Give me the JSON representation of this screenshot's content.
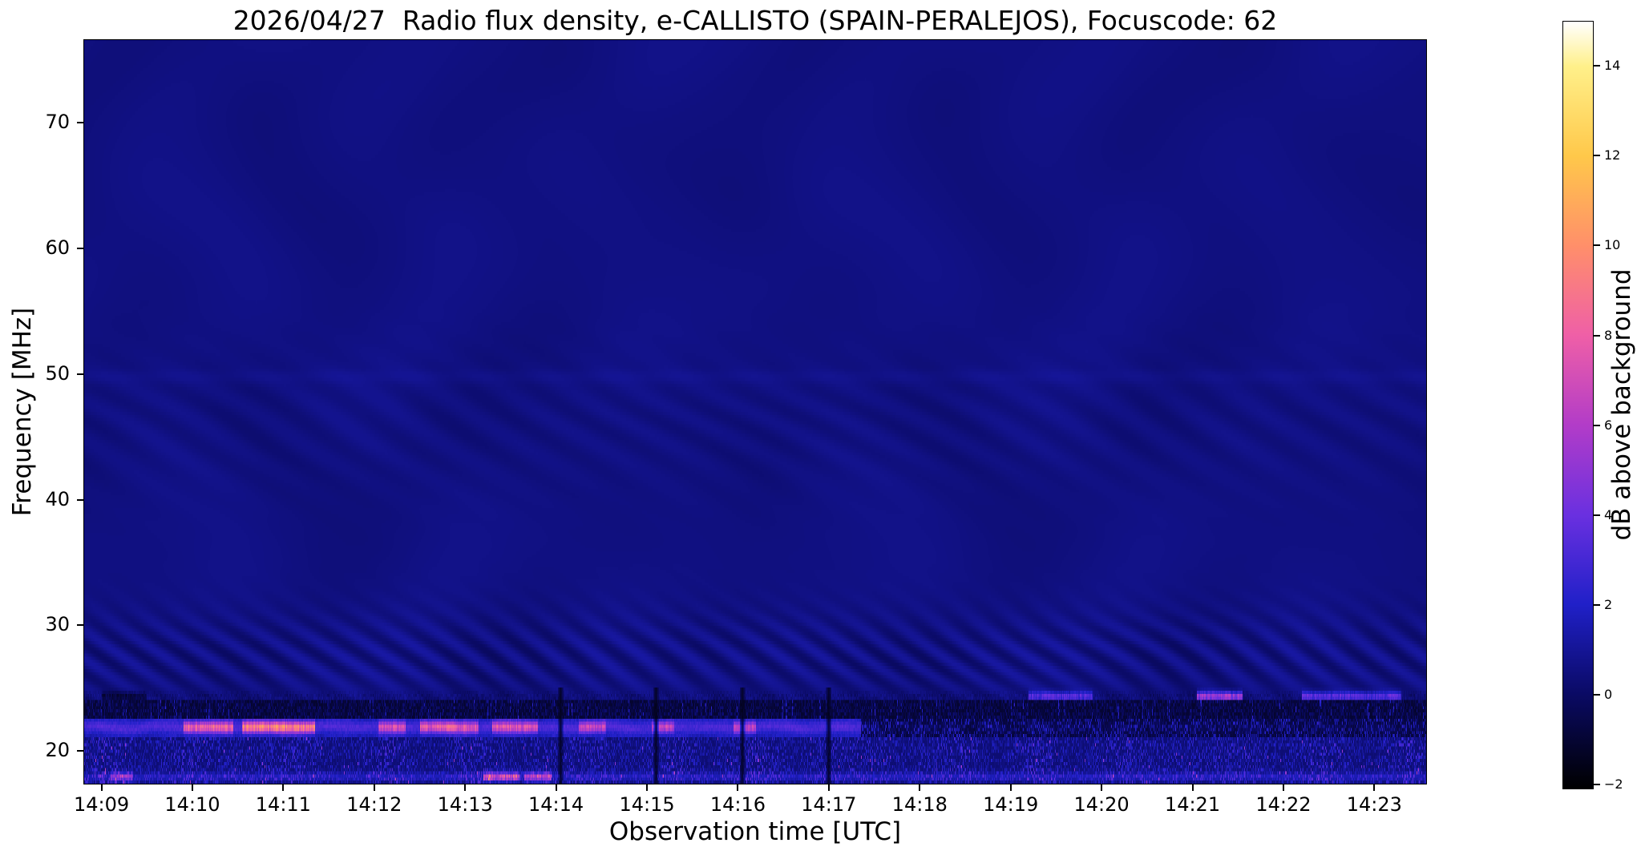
{
  "chart_data": {
    "type": "heatmap",
    "chart_kind": "radio dynamic spectrum (spectrogram)",
    "title": "2026/04/27  Radio flux density, e-CALLISTO (SPAIN-PERALEJOS), Focuscode: 62",
    "xlabel": "Observation time [UTC]",
    "ylabel": "Frequency [MHz]",
    "x_ticks": [
      {
        "minute": 0,
        "label": "14:09"
      },
      {
        "minute": 1,
        "label": "14:10"
      },
      {
        "minute": 2,
        "label": "14:11"
      },
      {
        "minute": 3,
        "label": "14:12"
      },
      {
        "minute": 4,
        "label": "14:13"
      },
      {
        "minute": 5,
        "label": "14:14"
      },
      {
        "minute": 6,
        "label": "14:15"
      },
      {
        "minute": 7,
        "label": "14:16"
      },
      {
        "minute": 8,
        "label": "14:17"
      },
      {
        "minute": 9,
        "label": "14:18"
      },
      {
        "minute": 10,
        "label": "14:19"
      },
      {
        "minute": 11,
        "label": "14:20"
      },
      {
        "minute": 12,
        "label": "14:21"
      },
      {
        "minute": 13,
        "label": "14:22"
      },
      {
        "minute": 14,
        "label": "14:23"
      }
    ],
    "x_axis_minutes": [
      -0.19,
      14.57
    ],
    "y_ticks": [
      20,
      30,
      40,
      50,
      60,
      70
    ],
    "ylim": [
      17.4,
      76.6
    ],
    "y_axis_direction": "frequency increases upward, low frequencies at bottom",
    "grid": false,
    "background_level_db": 0.5,
    "colorbar": {
      "label": "dB above background",
      "ticks": [
        -2,
        0,
        2,
        4,
        6,
        8,
        10,
        12,
        14
      ],
      "range": [
        -2.1,
        15
      ],
      "colormap_stops": [
        {
          "value": -2.1,
          "color": "#000000"
        },
        {
          "value": 0,
          "color": "#0a0a64"
        },
        {
          "value": 2,
          "color": "#2020c8"
        },
        {
          "value": 4,
          "color": "#6a30e0"
        },
        {
          "value": 6,
          "color": "#b23cc8"
        },
        {
          "value": 8,
          "color": "#ef5fa7"
        },
        {
          "value": 10,
          "color": "#ff8f6a"
        },
        {
          "value": 12,
          "color": "#ffc84a"
        },
        {
          "value": 14,
          "color": "#fff08a"
        },
        {
          "value": 15,
          "color": "#ffffff"
        }
      ]
    },
    "features": [
      {
        "id": "quiet-background",
        "freq_mhz": [
          25,
          76.6
        ],
        "mean_db": 0.5,
        "description": "uniform dark navy-blue quiet Sun background with faint mottling"
      },
      {
        "id": "fringe-low",
        "freq_mhz": [
          24.5,
          33
        ],
        "amp_db": 0.55,
        "description": "wavy interference fringe pattern strongest near 26-30 MHz"
      },
      {
        "id": "fringe-mid",
        "freq_mhz": [
          40,
          52
        ],
        "amp_db": 0.2,
        "description": "very faint horizontal banding around 43-52 MHz"
      },
      {
        "id": "line-24mhz",
        "freq_mhz": [
          24.0,
          25.1
        ],
        "mean_db": 0.4,
        "description": "thin intermittent RFI line near 24 MHz, bright magenta dash near 14:21",
        "bursts": [
          [
            0.0,
            0.5,
            -1.5
          ],
          [
            10.2,
            10.9,
            4
          ],
          [
            12.05,
            12.55,
            7
          ],
          [
            13.2,
            14.3,
            4
          ]
        ]
      },
      {
        "id": "dark-band",
        "freq_mhz": [
          22.6,
          24.0
        ],
        "mean_db": -1.1,
        "speckle_db": 1.5,
        "description": "nearly black suppressed band with sparse blue speckles"
      },
      {
        "id": "rfi-band-22mhz",
        "freq_mhz": [
          21.2,
          22.6
        ],
        "mean_db": 2.3,
        "active_until_minute": 8.35,
        "after_mean_db": -0.9,
        "after_speckle_db": 3.2,
        "description": "bright blue RFI band with magenta/pink bursts until ~14:17, then dark speckle",
        "bursts": [
          [
            0.9,
            1.45,
            6.5
          ],
          [
            1.55,
            2.35,
            8
          ],
          [
            3.05,
            3.35,
            5
          ],
          [
            3.5,
            4.15,
            6
          ],
          [
            4.3,
            4.8,
            5.5
          ],
          [
            5.25,
            5.55,
            4.5
          ],
          [
            6.05,
            6.3,
            4
          ],
          [
            6.95,
            7.2,
            4
          ]
        ]
      },
      {
        "id": "noise-band-low",
        "freq_mhz": [
          17.4,
          21.2
        ],
        "mean_db": 0.3,
        "speckle_db": 3.4,
        "description": "dense blue speckled noise band at the lowest frequencies"
      },
      {
        "id": "bottom-streak",
        "freq_mhz": [
          17.6,
          18.3
        ],
        "mean_db": 1.8,
        "description": "thin bright streak near bottom edge, pink around 14:13",
        "bursts": [
          [
            0.1,
            0.35,
            4
          ],
          [
            4.2,
            4.6,
            6.5
          ],
          [
            4.65,
            4.95,
            5.5
          ]
        ]
      },
      {
        "id": "dropout-lines",
        "times_minutes": [
          5.05,
          6.1,
          7.05,
          8.0
        ],
        "freq_mhz": [
          17.4,
          25
        ],
        "level_db": -1.6,
        "description": "narrow vertical dark dropout lines in the low-frequency region"
      }
    ]
  }
}
